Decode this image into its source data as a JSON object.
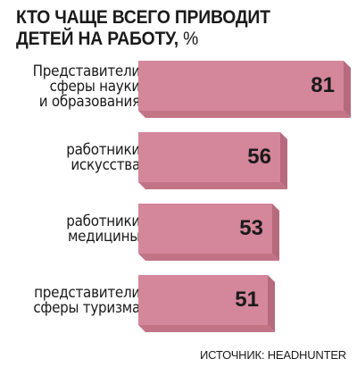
{
  "chart_data": {
    "type": "bar",
    "orientation": "horizontal",
    "title": "КТО ЧАЩЕ ВСЕГО ПРИВОДИТ ДЕТЕЙ НА РАБОТУ,",
    "unit": "%",
    "categories": [
      "Представители сферы науки и образования",
      "работники искусства",
      "работники медицины",
      "представители сферы туризма"
    ],
    "values": [
      81,
      56,
      53,
      51
    ],
    "xlim": [
      0,
      81
    ],
    "grid": false,
    "legend": "none",
    "bar_color": "#d4869a",
    "bar_side_color": "#b7697d",
    "source": "ИСТОЧНИК: HEADHUNTER"
  }
}
